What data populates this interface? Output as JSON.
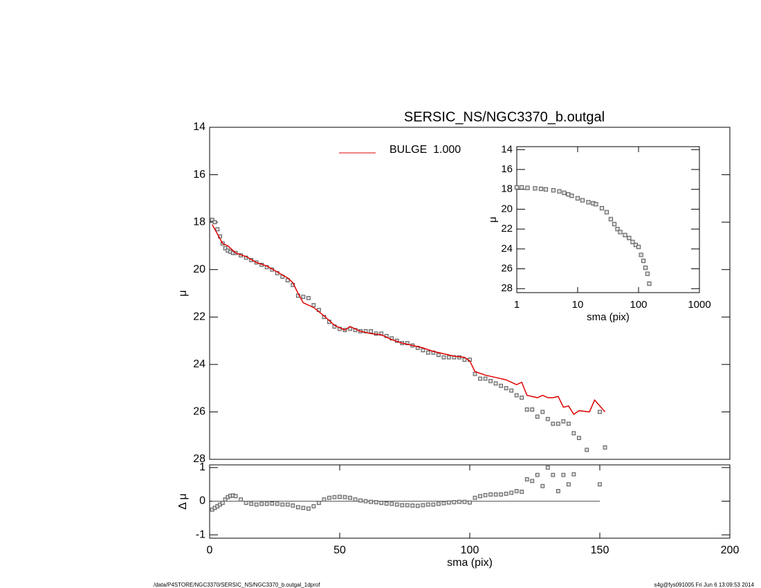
{
  "chart_data": [
    {
      "type": "scatter",
      "title": "SERSIC_NS/NGC3370_b.outgal",
      "ylabel": "μ",
      "xlim": [
        0,
        200
      ],
      "ylim": [
        14,
        28
      ],
      "yinvert": true,
      "yticks": [
        14,
        16,
        18,
        20,
        22,
        24,
        26,
        28
      ],
      "series": [
        {
          "color": "#808080",
          "style": "markers",
          "x": [
            1,
            2,
            3,
            4,
            5,
            6,
            7,
            8,
            9,
            10,
            12,
            14,
            16,
            18,
            20,
            22,
            24,
            26,
            28,
            30,
            32,
            34,
            36,
            38,
            40,
            42,
            44,
            46,
            48,
            50,
            52,
            54,
            56,
            58,
            60,
            62,
            64,
            66,
            68,
            70,
            72,
            74,
            76,
            78,
            80,
            82,
            84,
            86,
            88,
            90,
            92,
            94,
            96,
            98,
            100,
            102,
            104,
            106,
            108,
            110,
            112,
            114,
            116,
            118,
            120,
            122,
            124,
            126,
            128,
            130,
            132,
            134,
            136,
            138,
            140,
            142,
            145,
            150,
            152
          ],
          "values": [
            17.9,
            18.0,
            18.3,
            18.6,
            18.9,
            19.1,
            19.2,
            19.25,
            19.3,
            19.3,
            19.4,
            19.5,
            19.6,
            19.7,
            19.8,
            19.9,
            20.0,
            20.15,
            20.3,
            20.45,
            20.65,
            21.1,
            21.15,
            21.2,
            21.5,
            21.7,
            22.0,
            22.2,
            22.4,
            22.5,
            22.55,
            22.5,
            22.55,
            22.6,
            22.6,
            22.6,
            22.7,
            22.7,
            22.8,
            22.9,
            23.0,
            23.1,
            23.1,
            23.2,
            23.3,
            23.4,
            23.5,
            23.5,
            23.6,
            23.7,
            23.7,
            23.7,
            23.7,
            23.8,
            23.8,
            24.4,
            24.6,
            24.6,
            24.7,
            24.8,
            24.9,
            25.0,
            25.1,
            25.3,
            25.4,
            25.9,
            25.9,
            26.2,
            26.0,
            26.3,
            26.5,
            26.5,
            26.4,
            26.5,
            26.9,
            27.1,
            27.6,
            26.0,
            27.5
          ]
        },
        {
          "name": "BULGE  1.000",
          "color": "#e00000",
          "style": "line",
          "x": [
            1,
            3,
            5,
            7,
            10,
            14,
            18,
            22,
            26,
            30,
            32,
            34,
            36,
            40,
            44,
            48,
            52,
            54,
            58,
            62,
            66,
            70,
            74,
            78,
            82,
            86,
            90,
            94,
            98,
            100,
            102,
            106,
            110,
            114,
            118,
            120,
            122,
            126,
            128,
            130,
            132,
            134,
            136,
            138,
            140,
            142,
            146,
            148,
            152
          ],
          "values": [
            18.1,
            18.5,
            18.9,
            19.0,
            19.3,
            19.45,
            19.7,
            19.85,
            20.1,
            20.35,
            20.55,
            21.0,
            21.4,
            21.6,
            21.95,
            22.35,
            22.55,
            22.4,
            22.6,
            22.7,
            22.75,
            22.95,
            23.1,
            23.2,
            23.3,
            23.45,
            23.55,
            23.65,
            23.7,
            23.85,
            24.3,
            24.45,
            24.55,
            24.65,
            24.85,
            24.75,
            25.3,
            25.4,
            25.3,
            25.4,
            25.4,
            25.35,
            25.8,
            25.75,
            26.1,
            25.95,
            26.0,
            25.5,
            26.0
          ]
        }
      ]
    },
    {
      "type": "scatter",
      "xlabel": "sma (pix)",
      "ylabel": "μ",
      "xlog": true,
      "xlim": [
        1,
        1000
      ],
      "xticks": [
        1,
        10,
        100,
        1000
      ],
      "ylim": [
        13.7,
        28.4
      ],
      "yinvert": true,
      "yticks": [
        14,
        16,
        18,
        20,
        22,
        24,
        26,
        28
      ],
      "series": [
        {
          "color": "#808080",
          "style": "markers",
          "x": [
            1,
            1.2,
            1.5,
            2,
            2.5,
            3,
            4,
            5,
            6,
            7,
            8,
            10,
            12,
            15,
            18,
            20,
            25,
            30,
            35,
            40,
            45,
            50,
            60,
            70,
            80,
            90,
            100,
            110,
            120,
            130,
            140,
            150
          ],
          "values": [
            17.8,
            17.8,
            17.85,
            17.9,
            17.95,
            18.0,
            18.1,
            18.2,
            18.35,
            18.5,
            18.65,
            18.9,
            19.1,
            19.3,
            19.4,
            19.5,
            19.9,
            20.3,
            21.0,
            21.5,
            22.0,
            22.3,
            22.6,
            22.9,
            23.3,
            23.6,
            23.8,
            24.6,
            25.2,
            25.9,
            26.5,
            27.5
          ]
        }
      ]
    },
    {
      "type": "scatter",
      "xlabel": "sma (pix)",
      "ylabel": "Δ μ",
      "zero_line": true,
      "xlim": [
        0,
        200
      ],
      "xticks": [
        0,
        50,
        100,
        150,
        200
      ],
      "ylim": [
        -1.1,
        1.08
      ],
      "yticks": [
        -1,
        0,
        1
      ],
      "series": [
        {
          "color": "#808080",
          "style": "markers",
          "x": [
            1,
            2,
            3,
            4,
            5,
            6,
            7,
            8,
            9,
            10,
            12,
            14,
            16,
            18,
            20,
            22,
            24,
            26,
            28,
            30,
            32,
            34,
            36,
            38,
            40,
            42,
            44,
            46,
            48,
            50,
            52,
            54,
            56,
            58,
            60,
            62,
            64,
            66,
            68,
            70,
            72,
            74,
            76,
            78,
            80,
            82,
            84,
            86,
            88,
            90,
            92,
            94,
            96,
            98,
            100,
            102,
            104,
            106,
            108,
            110,
            112,
            114,
            116,
            118,
            120,
            122,
            124,
            126,
            128,
            130,
            132,
            134,
            136,
            138,
            140,
            150
          ],
          "values": [
            -0.25,
            -0.2,
            -0.15,
            -0.1,
            -0.05,
            0.05,
            0.12,
            0.16,
            0.17,
            0.15,
            0.05,
            -0.05,
            -0.08,
            -0.1,
            -0.08,
            -0.08,
            -0.07,
            -0.08,
            -0.1,
            -0.1,
            -0.13,
            -0.18,
            -0.2,
            -0.22,
            -0.15,
            -0.05,
            0.05,
            0.1,
            0.12,
            0.13,
            0.12,
            0.1,
            0.05,
            0.02,
            0.0,
            -0.02,
            -0.03,
            -0.05,
            -0.07,
            -0.08,
            -0.1,
            -0.12,
            -0.12,
            -0.13,
            -0.14,
            -0.12,
            -0.1,
            -0.1,
            -0.08,
            -0.06,
            -0.04,
            -0.03,
            -0.02,
            -0.02,
            -0.04,
            0.1,
            0.15,
            0.18,
            0.2,
            0.2,
            0.2,
            0.22,
            0.25,
            0.3,
            0.28,
            0.65,
            0.6,
            0.78,
            0.45,
            1.0,
            0.78,
            0.3,
            0.78,
            0.5,
            0.8,
            0.5
          ]
        }
      ]
    }
  ],
  "footer": {
    "left": "/data/P4STORE/NGC3370/SERSIC_NS/NGC3370_b.outgal_1dprof",
    "right": "s4g@fys091005  Fri Jun  6 13:09:53 2014"
  }
}
